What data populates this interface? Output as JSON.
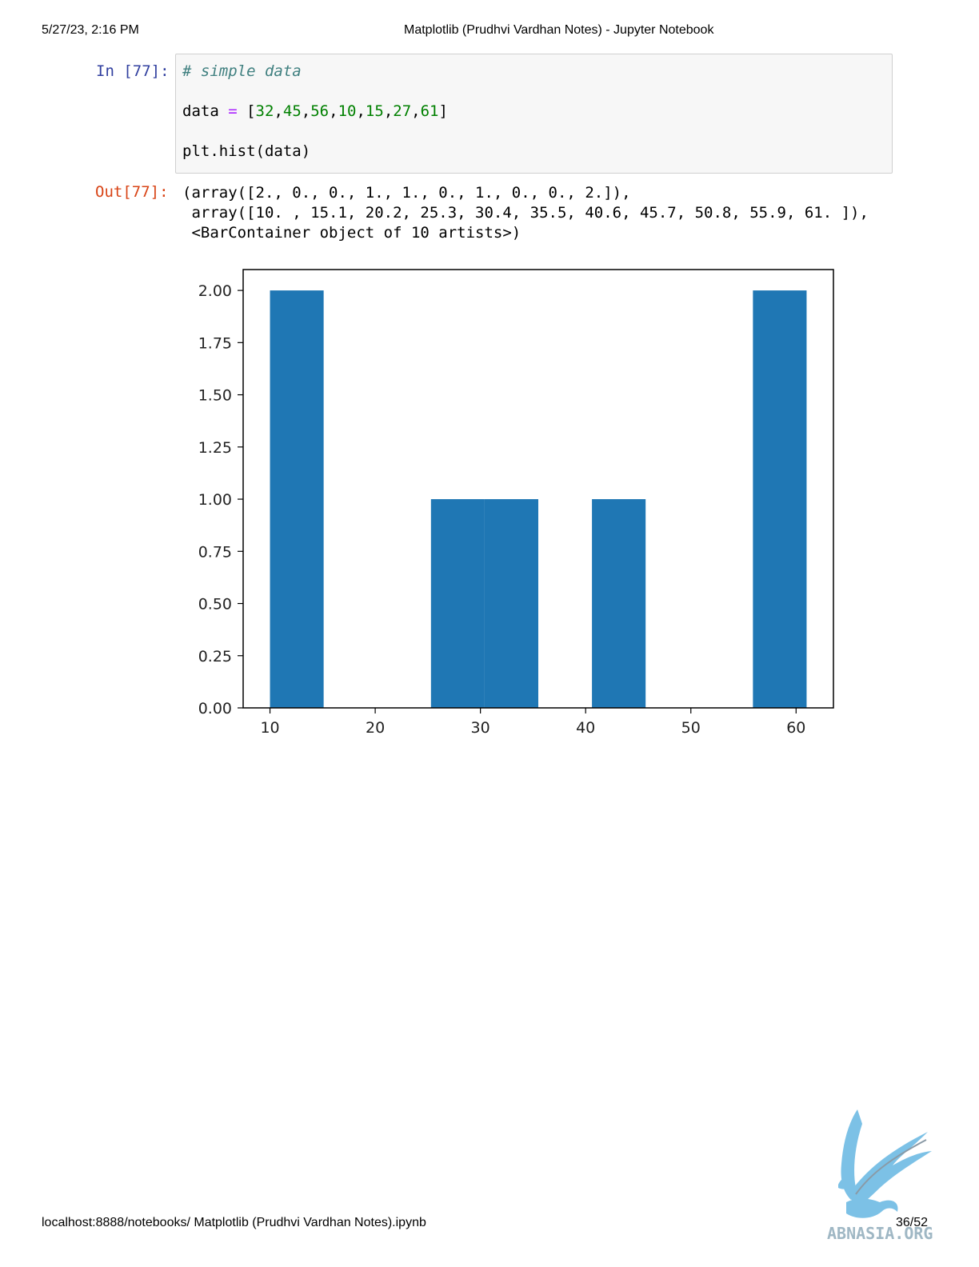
{
  "header": {
    "datetime": "5/27/23, 2:16 PM",
    "title": "Matplotlib (Prudhvi Vardhan Notes) - Jupyter Notebook"
  },
  "cell": {
    "in_prompt": "In [77]:",
    "out_prompt": "Out[77]:",
    "code": {
      "comment": "# simple data",
      "line2_prefix": "data ",
      "line2_op": "=",
      "line2_open": " [",
      "numbers": [
        "32",
        "45",
        "56",
        "10",
        "15",
        "27",
        "61"
      ],
      "line2_close": "]",
      "line3": "plt.hist(data)"
    },
    "output_lines": [
      "(array([2., 0., 0., 1., 1., 0., 1., 0., 0., 2.]),",
      " array([10. , 15.1, 20.2, 25.3, 30.4, 35.5, 40.6, 45.7, 50.8, 55.9, 61. ]),",
      " <BarContainer object of 10 artists>)"
    ]
  },
  "chart_data": {
    "type": "bar",
    "bin_edges": [
      10.0,
      15.1,
      20.2,
      25.3,
      30.4,
      35.5,
      40.6,
      45.7,
      50.8,
      55.9,
      61.0
    ],
    "values": [
      2,
      0,
      0,
      1,
      1,
      0,
      1,
      0,
      0,
      2
    ],
    "xlim": [
      7.45,
      63.55
    ],
    "ylim": [
      0,
      2.1
    ],
    "xticks": [
      10,
      20,
      30,
      40,
      50,
      60
    ],
    "yticks": [
      "0.00",
      "0.25",
      "0.50",
      "0.75",
      "1.00",
      "1.25",
      "1.50",
      "1.75",
      "2.00"
    ],
    "bar_color": "#1f77b4",
    "grid": false
  },
  "footer": {
    "url": "localhost:8888/notebooks/ Matplotlib (Prudhvi Vardhan Notes).ipynb",
    "page": "36/52"
  },
  "watermark": {
    "text": "ABNASIA.ORG",
    "color": "#7cc1e6"
  }
}
